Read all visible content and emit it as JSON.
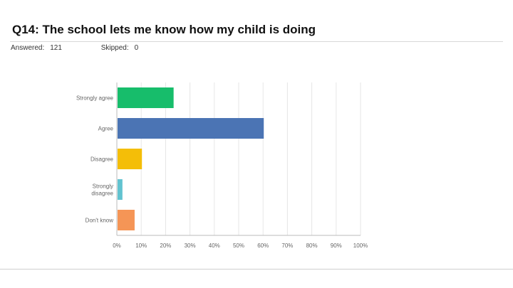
{
  "header": {
    "title": "Q14: The school lets me know how my child is doing",
    "answered_label": "Answered:",
    "answered_value": "121",
    "skipped_label": "Skipped:",
    "skipped_value": "0"
  },
  "chart_data": {
    "type": "bar",
    "orientation": "horizontal",
    "title": "",
    "xlabel": "",
    "ylabel": "",
    "categories": [
      [
        "Strongly agree"
      ],
      [
        "Agree"
      ],
      [
        "Disagree"
      ],
      [
        "Strongly",
        "disagree"
      ],
      [
        "Don't know"
      ]
    ],
    "values": [
      23,
      60,
      10,
      2,
      7
    ],
    "colors": [
      "#17bd6b",
      "#4b74b4",
      "#f4be08",
      "#62c3d0",
      "#f59556"
    ],
    "xlim": [
      0,
      100
    ],
    "ticks": [
      "0%",
      "10%",
      "20%",
      "30%",
      "40%",
      "50%",
      "60%",
      "70%",
      "80%",
      "90%",
      "100%"
    ],
    "grid": true
  }
}
